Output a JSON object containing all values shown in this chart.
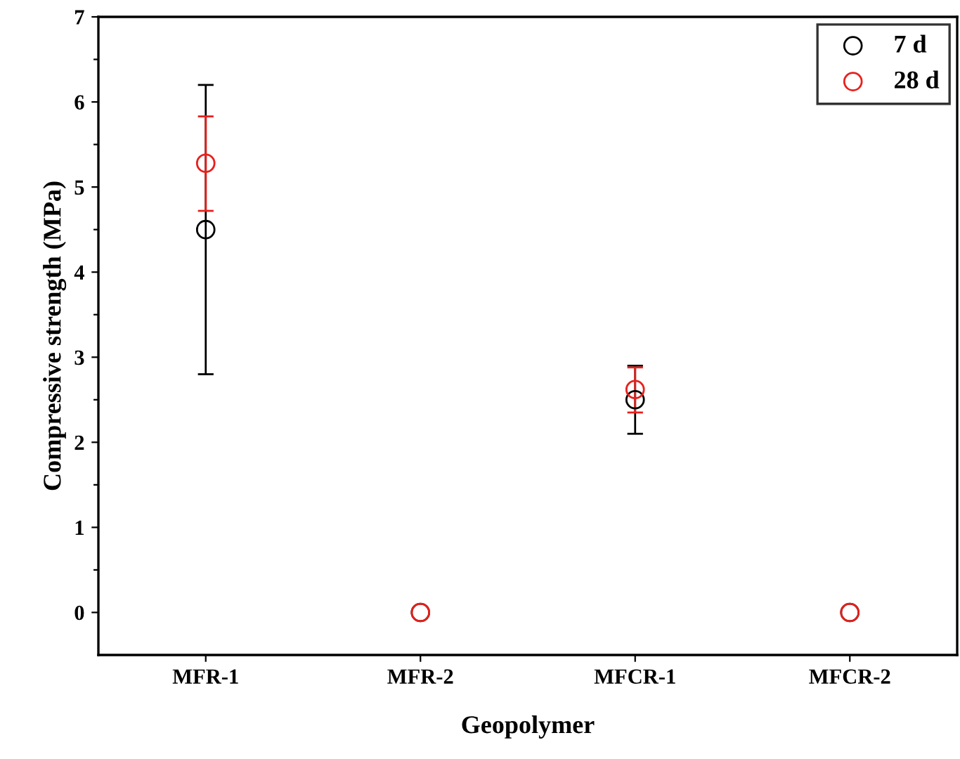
{
  "chart_data": {
    "type": "scatter",
    "xlabel": "Geopolymer",
    "ylabel": "Compressive strength (MPa)",
    "categories": [
      "MFR-1",
      "MFR-2",
      "MFCR-1",
      "MFCR-2"
    ],
    "series": [
      {
        "name": "7 d",
        "color": "#000000",
        "values": [
          4.5,
          0,
          2.5,
          0
        ],
        "errors": [
          [
            2.8,
            6.2
          ],
          null,
          [
            2.1,
            2.9
          ],
          null
        ]
      },
      {
        "name": "28 d",
        "color": "#e8201c",
        "values": [
          5.28,
          0,
          2.62,
          0
        ],
        "errors": [
          [
            4.72,
            5.83
          ],
          null,
          [
            2.35,
            2.88
          ],
          null
        ]
      }
    ],
    "ylim": [
      -0.5,
      7
    ],
    "yticks": [
      0,
      {
        "value": 0.5,
        "label": null
      },
      1,
      {
        "value": 1.5,
        "label": null
      },
      2,
      {
        "value": 2.5,
        "label": null
      },
      3,
      {
        "value": 3.5,
        "label": null
      },
      4,
      {
        "value": 4.5,
        "label": null
      },
      5,
      {
        "value": 5.5,
        "label": null
      },
      6,
      {
        "value": 6.5,
        "label": null
      },
      7
    ],
    "marker": "circle",
    "legend": "top right",
    "grid": false
  }
}
